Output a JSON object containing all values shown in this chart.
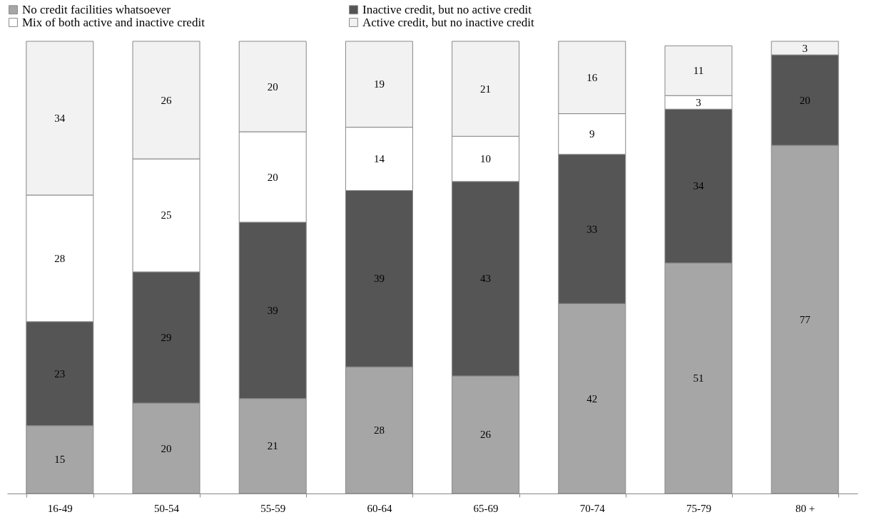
{
  "chart_data": {
    "type": "bar",
    "stacked": true,
    "categories": [
      "16-49",
      "50-54",
      "55-59",
      "60-64",
      "65-69",
      "70-74",
      "75-79",
      "80 +"
    ],
    "series": [
      {
        "name": "No credit facilities whatsoever",
        "color": "#a6a6a6",
        "values": [
          15,
          20,
          21,
          28,
          26,
          42,
          51,
          77
        ]
      },
      {
        "name": "Inactive credit, but no active credit",
        "color": "#555555",
        "values": [
          23,
          29,
          39,
          39,
          43,
          33,
          34,
          20
        ]
      },
      {
        "name": "Mix of both active and inactive credit",
        "color": "#ffffff",
        "values": [
          28,
          25,
          20,
          14,
          10,
          9,
          3,
          null
        ]
      },
      {
        "name": "Active credit, but no inactive credit",
        "color": "#f2f2f2",
        "values": [
          34,
          26,
          20,
          19,
          21,
          16,
          11,
          3
        ]
      }
    ],
    "data_labels": true,
    "legend": "top",
    "grid": false
  }
}
